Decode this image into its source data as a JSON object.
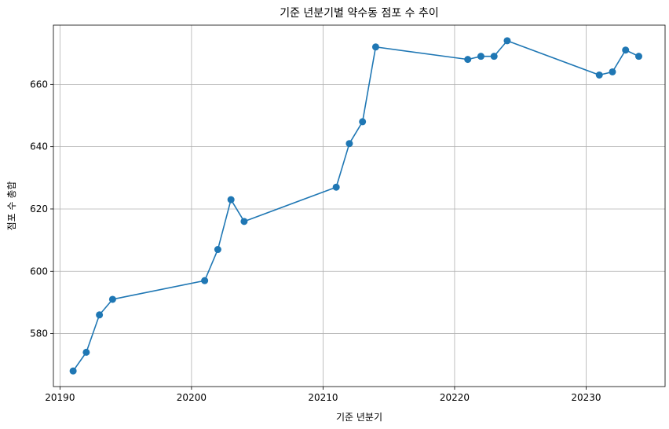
{
  "chart_data": {
    "type": "line",
    "title": "기준 년분기별 약수동 점포 수 추이",
    "xlabel": "기준 년분기",
    "ylabel": "점포 수 총합",
    "xlim": [
      20189.5,
      20236.0
    ],
    "ylim": [
      563.0,
      679.0
    ],
    "x_ticks": [
      20190,
      20200,
      20210,
      20220,
      20230
    ],
    "y_ticks": [
      580,
      600,
      620,
      640,
      660
    ],
    "grid": true,
    "legend": "none",
    "colors": {
      "series": "#1f77b4",
      "grid": "#b0b0b0",
      "axes": "#000000"
    },
    "series": [
      {
        "x": [
          20191,
          20192,
          20193,
          20194,
          20201,
          20202,
          20203,
          20204,
          20211,
          20212,
          20213,
          20214,
          20221,
          20222,
          20223,
          20224,
          20231,
          20232,
          20233,
          20234
        ],
        "y": [
          568,
          574,
          586,
          591,
          597,
          607,
          623,
          616,
          627,
          641,
          648,
          672,
          668,
          669,
          669,
          674,
          663,
          664,
          671,
          669
        ]
      }
    ]
  }
}
